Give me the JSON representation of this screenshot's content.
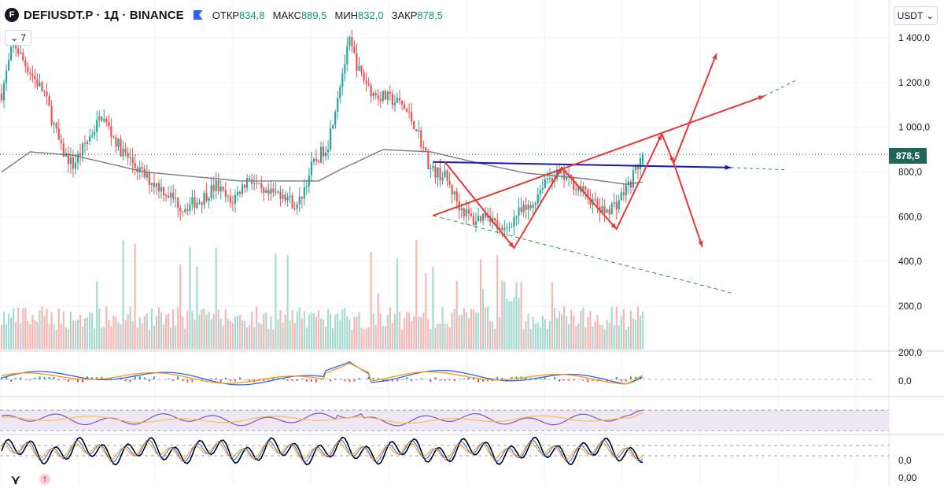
{
  "header": {
    "symbol": "DEFIUSDT.P · 1Д · BINANCE",
    "open_label": "ОТКР",
    "open_value": "834,8",
    "high_label": "МАКС",
    "high_value": "889,5",
    "low_label": "МИН",
    "low_value": "832,0",
    "close_label": "ЗАКР",
    "close_value": "878,5",
    "indicator_button": "7",
    "logo_glyph": "F"
  },
  "currency_button": "USDT",
  "price_label": "878,5",
  "colors": {
    "up": "#26a69a",
    "down": "#ef5350",
    "ma": "#787b86",
    "drawing": "#e53935",
    "neckline": "#1a1aa8",
    "dashed": "#3c8c3c",
    "price_line": "#22665a"
  },
  "chart_data": {
    "type": "candlestick",
    "timeframe": "1Д",
    "y_axis_ticks": [
      "1 400,0",
      "1 200,0",
      "1 000,0",
      "800,0",
      "600,0",
      "400,0",
      "200,0"
    ],
    "y_axis_range": [
      200,
      1450
    ],
    "last_price": 878.5,
    "ohlc_last": {
      "open": 834.8,
      "high": 889.5,
      "low": 832.0,
      "close": 878.5
    },
    "price_swings": [
      {
        "t": 0,
        "p": 1150
      },
      {
        "t": 5,
        "p": 1380
      },
      {
        "t": 10,
        "p": 1280
      },
      {
        "t": 18,
        "p": 1150
      },
      {
        "t": 25,
        "p": 900
      },
      {
        "t": 30,
        "p": 830
      },
      {
        "t": 42,
        "p": 1050
      },
      {
        "t": 50,
        "p": 900
      },
      {
        "t": 60,
        "p": 780
      },
      {
        "t": 68,
        "p": 720
      },
      {
        "t": 76,
        "p": 640
      },
      {
        "t": 84,
        "p": 680
      },
      {
        "t": 90,
        "p": 740
      },
      {
        "t": 96,
        "p": 660
      },
      {
        "t": 104,
        "p": 780
      },
      {
        "t": 110,
        "p": 690
      },
      {
        "t": 118,
        "p": 710
      },
      {
        "t": 124,
        "p": 640
      },
      {
        "t": 130,
        "p": 820
      },
      {
        "t": 137,
        "p": 930
      },
      {
        "t": 142,
        "p": 1200
      },
      {
        "t": 146,
        "p": 1380
      },
      {
        "t": 150,
        "p": 1250
      },
      {
        "t": 156,
        "p": 1150
      },
      {
        "t": 162,
        "p": 1130
      },
      {
        "t": 168,
        "p": 1100
      },
      {
        "t": 174,
        "p": 1000
      },
      {
        "t": 180,
        "p": 810
      },
      {
        "t": 186,
        "p": 780
      },
      {
        "t": 192,
        "p": 650
      },
      {
        "t": 198,
        "p": 580
      },
      {
        "t": 204,
        "p": 620
      },
      {
        "t": 210,
        "p": 520
      },
      {
        "t": 216,
        "p": 610
      },
      {
        "t": 222,
        "p": 640
      },
      {
        "t": 228,
        "p": 770
      },
      {
        "t": 234,
        "p": 790
      },
      {
        "t": 240,
        "p": 750
      },
      {
        "t": 246,
        "p": 690
      },
      {
        "t": 252,
        "p": 620
      },
      {
        "t": 258,
        "p": 660
      },
      {
        "t": 264,
        "p": 760
      },
      {
        "t": 269,
        "p": 878.5
      }
    ],
    "moving_average": [
      {
        "t": 0,
        "p": 800
      },
      {
        "t": 12,
        "p": 890
      },
      {
        "t": 30,
        "p": 875
      },
      {
        "t": 60,
        "p": 800
      },
      {
        "t": 100,
        "p": 760
      },
      {
        "t": 133,
        "p": 760
      },
      {
        "t": 142,
        "p": 810
      },
      {
        "t": 160,
        "p": 900
      },
      {
        "t": 180,
        "p": 890
      },
      {
        "t": 200,
        "p": 840
      },
      {
        "t": 220,
        "p": 795
      },
      {
        "t": 245,
        "p": 770
      },
      {
        "t": 262,
        "p": 745
      },
      {
        "t": 269,
        "p": 755
      }
    ],
    "drawings": [
      {
        "kind": "neckline",
        "color": "blue",
        "from": {
          "t": 181,
          "p": 845
        },
        "to": {
          "t": 306,
          "p": 820
        }
      },
      {
        "kind": "support-dashed",
        "from": {
          "t": 181,
          "p": 605
        },
        "to": {
          "t": 306,
          "p": 260
        }
      },
      {
        "kind": "trendline",
        "from": {
          "t": 181,
          "p": 605
        },
        "to": {
          "t": 320,
          "p": 1140
        }
      },
      {
        "kind": "zigzag",
        "points": [
          {
            "t": 186,
            "p": 845
          },
          {
            "t": 215,
            "p": 460
          },
          {
            "t": 235,
            "p": 820
          },
          {
            "t": 258,
            "p": 545
          },
          {
            "t": 277,
            "p": 970
          },
          {
            "t": 282,
            "p": 840
          },
          {
            "t": 300,
            "p": 1330
          }
        ]
      },
      {
        "kind": "arrow-down",
        "from": {
          "t": 282,
          "p": 840
        },
        "to": {
          "t": 294,
          "p": 465
        }
      }
    ],
    "indicators": [
      "Volume",
      "MACD",
      "RSI",
      "Stochastic"
    ],
    "indicator_ticks": [
      "200,0",
      "0,0",
      "0,0",
      "0,00"
    ]
  }
}
